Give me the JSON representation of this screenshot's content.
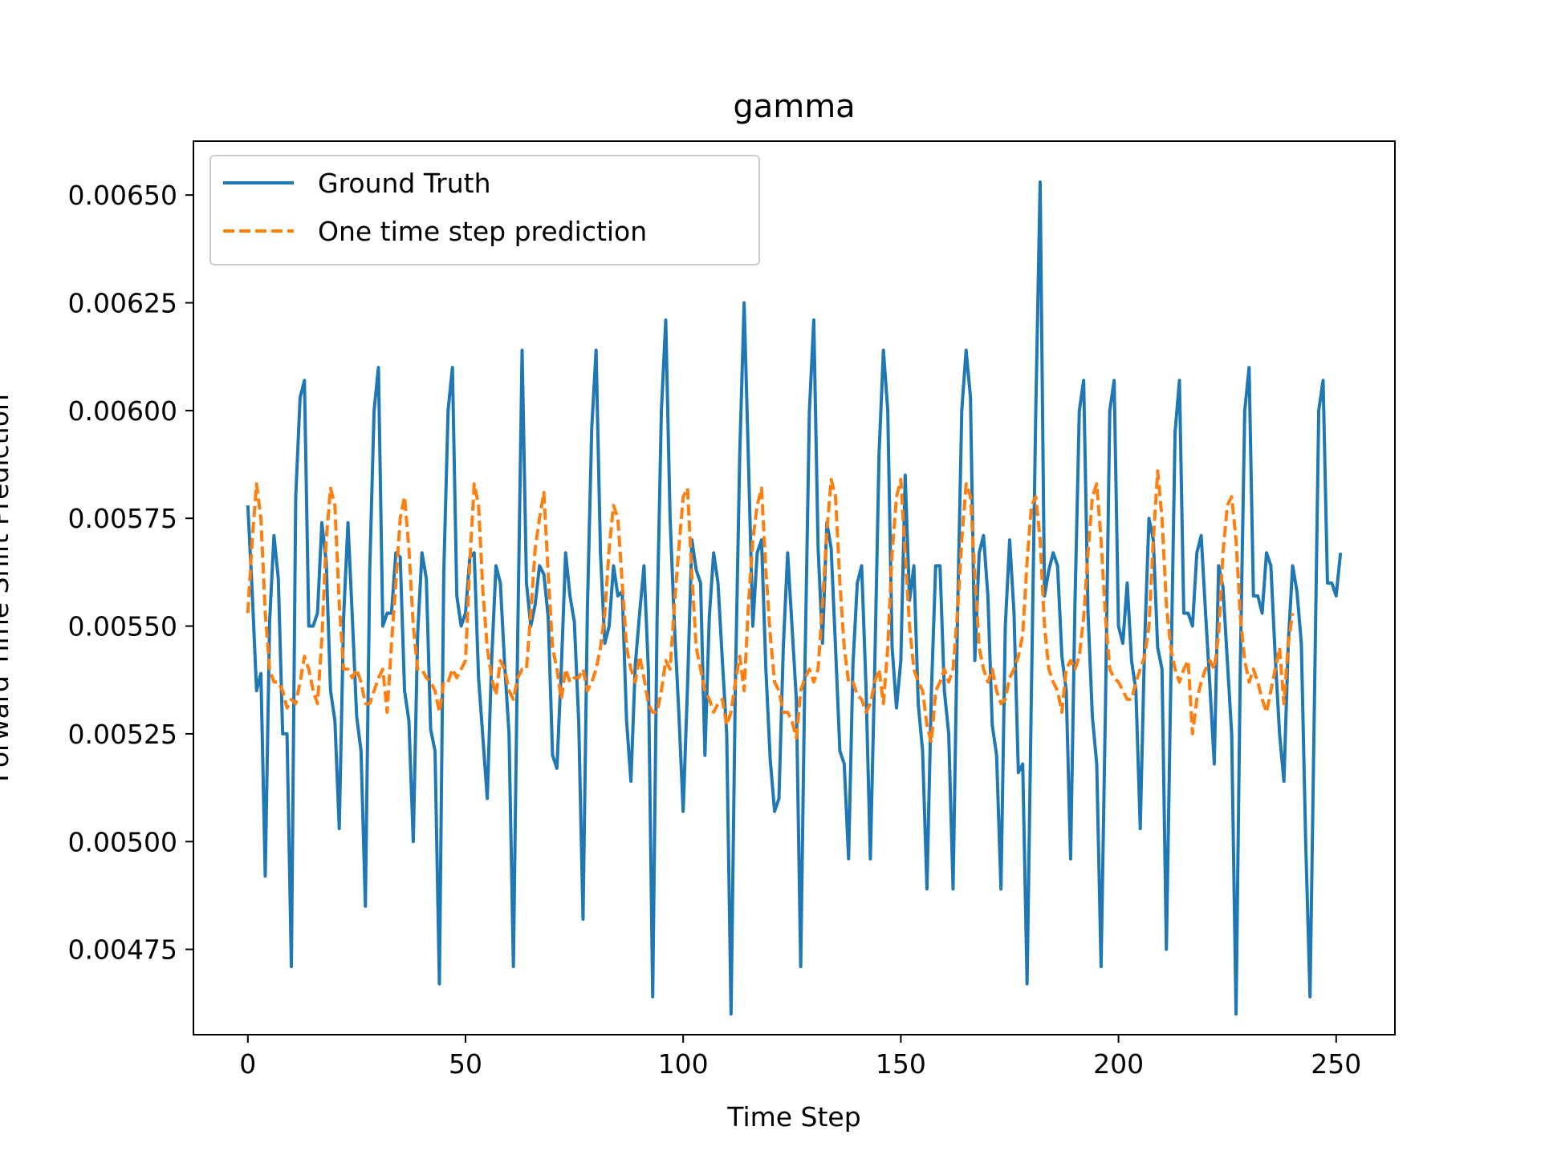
{
  "chart_data": {
    "type": "line",
    "title": "gamma",
    "xlabel": "Time Step",
    "ylabel": "Forward Time Shift Prediction",
    "xlim": [
      -12.5,
      263.5
    ],
    "ylim": [
      0.004552,
      0.006625
    ],
    "xticks": [
      0,
      50,
      100,
      150,
      200,
      250
    ],
    "yticks": [
      0.00475,
      0.005,
      0.00525,
      0.0055,
      0.00575,
      0.006,
      0.00625,
      0.0065
    ],
    "ytick_labels": [
      "0.00475",
      "0.00500",
      "0.00525",
      "0.00550",
      "0.00575",
      "0.00600",
      "0.00625",
      "0.00650"
    ],
    "legend_position": "upper-left",
    "grid": false,
    "series": [
      {
        "name": "Ground Truth",
        "color": "#1f77b4",
        "style": "solid",
        "values": [
          0.00578,
          0.00558,
          0.00535,
          0.00539,
          0.00492,
          0.00551,
          0.00571,
          0.00561,
          0.00525,
          0.00525,
          0.00471,
          0.0058,
          0.00603,
          0.00607,
          0.0055,
          0.0055,
          0.00553,
          0.00574,
          0.00565,
          0.00535,
          0.00528,
          0.00503,
          0.00552,
          0.00574,
          0.00552,
          0.00529,
          0.00521,
          0.00485,
          0.00563,
          0.006,
          0.0061,
          0.0055,
          0.00553,
          0.00553,
          0.00567,
          0.00566,
          0.00535,
          0.00528,
          0.005,
          0.00548,
          0.00567,
          0.00561,
          0.00526,
          0.00521,
          0.00467,
          0.00562,
          0.006,
          0.0061,
          0.00557,
          0.0055,
          0.00553,
          0.00566,
          0.00567,
          0.00538,
          0.00524,
          0.0051,
          0.00542,
          0.00564,
          0.0056,
          0.00541,
          0.00525,
          0.00471,
          0.00548,
          0.00614,
          0.0056,
          0.0055,
          0.00555,
          0.00564,
          0.00562,
          0.00552,
          0.0052,
          0.00517,
          0.0054,
          0.00567,
          0.00557,
          0.00551,
          0.00528,
          0.00482,
          0.00554,
          0.00596,
          0.00614,
          0.00567,
          0.00546,
          0.0055,
          0.00564,
          0.00557,
          0.00558,
          0.00528,
          0.00514,
          0.00541,
          0.00553,
          0.00564,
          0.0054,
          0.00464,
          0.00551,
          0.006,
          0.00621,
          0.00575,
          0.0055,
          0.0053,
          0.00507,
          0.00536,
          0.0057,
          0.00563,
          0.0056,
          0.0052,
          0.00552,
          0.00567,
          0.0056,
          0.00542,
          0.00525,
          0.0046,
          0.00537,
          0.0059,
          0.00625,
          0.00588,
          0.0055,
          0.00567,
          0.0057,
          0.0054,
          0.00519,
          0.00507,
          0.0051,
          0.00545,
          0.00567,
          0.0055,
          0.00533,
          0.00471,
          0.00542,
          0.006,
          0.00621,
          0.00568,
          0.00546,
          0.00574,
          0.00568,
          0.00545,
          0.00521,
          0.00518,
          0.00496,
          0.00541,
          0.0056,
          0.00564,
          0.00536,
          0.00496,
          0.0054,
          0.0059,
          0.00614,
          0.006,
          0.00545,
          0.00531,
          0.00542,
          0.00585,
          0.00556,
          0.00564,
          0.00532,
          0.00521,
          0.00489,
          0.00534,
          0.00564,
          0.00564,
          0.00535,
          0.00525,
          0.00489,
          0.00551,
          0.006,
          0.00614,
          0.00603,
          0.00542,
          0.00567,
          0.00571,
          0.00557,
          0.00527,
          0.0052,
          0.00489,
          0.0055,
          0.0057,
          0.00553,
          0.00516,
          0.00518,
          0.00467,
          0.00535,
          0.006,
          0.00653,
          0.00557,
          0.00563,
          0.00567,
          0.00564,
          0.00543,
          0.00535,
          0.00496,
          0.00555,
          0.006,
          0.00607,
          0.00553,
          0.00529,
          0.00518,
          0.00471,
          0.00531,
          0.006,
          0.00607,
          0.0055,
          0.00546,
          0.0056,
          0.00542,
          0.00535,
          0.00503,
          0.00546,
          0.00575,
          0.0057,
          0.00545,
          0.0054,
          0.00475,
          0.00536,
          0.00595,
          0.00607,
          0.00553,
          0.00553,
          0.0055,
          0.00567,
          0.00571,
          0.00553,
          0.00536,
          0.00518,
          0.00564,
          0.00559,
          0.00542,
          0.00525,
          0.0046,
          0.00542,
          0.006,
          0.0061,
          0.00557,
          0.00557,
          0.00553,
          0.00567,
          0.00564,
          0.00543,
          0.00525,
          0.00514,
          0.00546,
          0.00564,
          0.00558,
          0.00546,
          0.005,
          0.00464,
          0.00532,
          0.006,
          0.00607,
          0.0056,
          0.0056,
          0.00557,
          0.00567
        ]
      },
      {
        "name": "One time step prediction",
        "color": "#ff7f0e",
        "style": "dashed",
        "values": [
          0.00553,
          0.0057,
          0.00583,
          0.00575,
          0.00553,
          0.0054,
          0.00537,
          0.00537,
          0.00535,
          0.00531,
          0.00533,
          0.00532,
          0.00537,
          0.00543,
          0.0054,
          0.00535,
          0.00532,
          0.00547,
          0.0057,
          0.00582,
          0.00578,
          0.00555,
          0.0054,
          0.0054,
          0.00538,
          0.0054,
          0.00537,
          0.00532,
          0.00532,
          0.00535,
          0.00538,
          0.0054,
          0.0053,
          0.00546,
          0.0056,
          0.00575,
          0.0058,
          0.00568,
          0.0055,
          0.0054,
          0.0054,
          0.00538,
          0.00537,
          0.00535,
          0.0053,
          0.00537,
          0.00537,
          0.0054,
          0.00538,
          0.0054,
          0.00542,
          0.00565,
          0.00583,
          0.00578,
          0.00558,
          0.00545,
          0.00538,
          0.00534,
          0.00542,
          0.0054,
          0.00535,
          0.00533,
          0.00538,
          0.0054,
          0.0054,
          0.00553,
          0.00568,
          0.00575,
          0.00581,
          0.00562,
          0.00545,
          0.0054,
          0.00533,
          0.0054,
          0.00537,
          0.00538,
          0.00538,
          0.0054,
          0.00535,
          0.00537,
          0.0054,
          0.00545,
          0.00553,
          0.00568,
          0.00578,
          0.00575,
          0.0056,
          0.00545,
          0.0054,
          0.00537,
          0.00543,
          0.00538,
          0.00532,
          0.0053,
          0.0053,
          0.00535,
          0.00542,
          0.0054,
          0.00555,
          0.00568,
          0.0058,
          0.00582,
          0.00562,
          0.00545,
          0.0054,
          0.00535,
          0.00533,
          0.0053,
          0.00532,
          0.00533,
          0.00527,
          0.0053,
          0.00537,
          0.00543,
          0.00535,
          0.00555,
          0.0057,
          0.00578,
          0.00582,
          0.00563,
          0.00548,
          0.00537,
          0.00535,
          0.0053,
          0.0053,
          0.00528,
          0.00524,
          0.00535,
          0.00538,
          0.0054,
          0.00537,
          0.0054,
          0.00555,
          0.00572,
          0.00584,
          0.0058,
          0.0056,
          0.00545,
          0.00537,
          0.00537,
          0.00534,
          0.00533,
          0.0053,
          0.00532,
          0.00537,
          0.0054,
          0.00532,
          0.00545,
          0.00567,
          0.0058,
          0.00584,
          0.00567,
          0.0055,
          0.0054,
          0.00537,
          0.00535,
          0.00527,
          0.00523,
          0.00535,
          0.00537,
          0.0054,
          0.00537,
          0.0054,
          0.00553,
          0.0057,
          0.00583,
          0.0058,
          0.00562,
          0.00545,
          0.0054,
          0.00537,
          0.0054,
          0.00535,
          0.00532,
          0.00533,
          0.00538,
          0.0054,
          0.00543,
          0.00548,
          0.00565,
          0.00578,
          0.0058,
          0.0057,
          0.0055,
          0.0054,
          0.00537,
          0.00535,
          0.0053,
          0.0054,
          0.00542,
          0.0054,
          0.00543,
          0.00552,
          0.00567,
          0.0058,
          0.00583,
          0.0057,
          0.00552,
          0.0054,
          0.00538,
          0.00537,
          0.00535,
          0.00533,
          0.00533,
          0.00537,
          0.0054,
          0.00543,
          0.0055,
          0.0057,
          0.00586,
          0.00575,
          0.00555,
          0.00545,
          0.0054,
          0.00537,
          0.0054,
          0.00542,
          0.00525,
          0.00533,
          0.00537,
          0.0054,
          0.00542,
          0.0054,
          0.00548,
          0.00567,
          0.00578,
          0.0058,
          0.0057,
          0.00552,
          0.00542,
          0.00537,
          0.0054,
          0.00537,
          0.00533,
          0.0053,
          0.00535,
          0.0054,
          0.00545,
          0.00532,
          0.00546,
          0.00553
        ]
      }
    ]
  }
}
